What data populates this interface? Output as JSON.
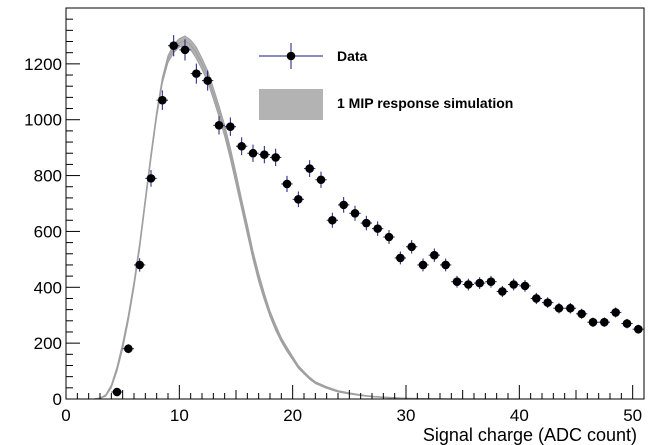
{
  "chart_data": {
    "type": "scatter",
    "xlabel": "Signal charge (ADC count)",
    "ylabel": "",
    "xlim": [
      0,
      51
    ],
    "ylim": [
      0,
      1400
    ],
    "x_ticks": [
      0,
      10,
      20,
      30,
      40,
      50
    ],
    "y_ticks": [
      0,
      200,
      400,
      600,
      800,
      1000,
      1200
    ],
    "x_tick_labels": [
      "0",
      "10",
      "20",
      "30",
      "40",
      "50"
    ],
    "y_tick_labels": [
      "0",
      "200",
      "400",
      "600",
      "800",
      "1000",
      "1200"
    ],
    "grid": false,
    "legend_position": "top-right",
    "legend": {
      "data_label": "Data",
      "sim_label": "1 MIP response simulation"
    },
    "colors": {
      "data_marker": "#000000",
      "data_errorbar": "#1a1a80",
      "sim_band": "#b3b3b3",
      "sim_line": "#a0a0a0"
    },
    "series": [
      {
        "kind": "points_with_errors",
        "x": [
          4.5,
          5.5,
          6.5,
          7.5,
          8.5,
          9.5,
          10.5,
          11.5,
          12.5,
          13.5,
          14.5,
          15.5,
          16.5,
          17.5,
          18.5,
          19.5,
          20.5,
          21.5,
          22.5,
          23.5,
          24.5,
          25.5,
          26.5,
          27.5,
          28.5,
          29.5,
          30.5,
          31.5,
          32.5,
          33.5,
          34.5,
          35.5,
          36.5,
          37.5,
          38.5,
          39.5,
          40.5,
          41.5,
          42.5,
          43.5,
          44.5,
          45.5,
          46.5,
          47.5,
          48.5,
          49.5,
          50.5
        ],
        "y": [
          25,
          180,
          480,
          790,
          1070,
          1265,
          1250,
          1165,
          1140,
          980,
          975,
          905,
          880,
          875,
          865,
          770,
          715,
          825,
          785,
          640,
          695,
          665,
          630,
          610,
          580,
          505,
          545,
          480,
          515,
          480,
          420,
          410,
          415,
          420,
          385,
          410,
          405,
          360,
          345,
          325,
          325,
          305,
          275,
          275,
          310,
          270,
          250
        ],
        "yerr": [
          6,
          16,
          24,
          30,
          35,
          38,
          38,
          36,
          36,
          33,
          33,
          32,
          31,
          31,
          31,
          29,
          28,
          30,
          29,
          27,
          28,
          27,
          26,
          26,
          25,
          23,
          24,
          23,
          24,
          23,
          21,
          21,
          21,
          21,
          20,
          21,
          21,
          20,
          19,
          19,
          19,
          18,
          17,
          17,
          18,
          17,
          16
        ]
      },
      {
        "kind": "band",
        "x": [
          2.5,
          3,
          3.5,
          4,
          4.5,
          5,
          5.5,
          6,
          6.5,
          7,
          7.5,
          8,
          8.5,
          9,
          9.5,
          10,
          10.5,
          11,
          11.5,
          12,
          12.5,
          13,
          13.5,
          14,
          14.5,
          15,
          15.5,
          16,
          16.5,
          17,
          17.5,
          18,
          18.5,
          19,
          19.5,
          20,
          20.5,
          21,
          21.5,
          22,
          23,
          24,
          25,
          26,
          27,
          28,
          29,
          30,
          31,
          32,
          33,
          34,
          35,
          36,
          37,
          38,
          39,
          40
        ],
        "lower": [
          0,
          2,
          10,
          40,
          100,
          180,
          280,
          400,
          540,
          700,
          860,
          1010,
          1130,
          1205,
          1240,
          1260,
          1265,
          1250,
          1220,
          1180,
          1135,
          1075,
          1010,
          940,
          860,
          770,
          680,
          590,
          500,
          420,
          355,
          295,
          245,
          205,
          170,
          140,
          110,
          90,
          70,
          55,
          38,
          25,
          18,
          12,
          8,
          5,
          3,
          2,
          1,
          0,
          0,
          0,
          0,
          0,
          0,
          0,
          0,
          0
        ],
        "upper": [
          0,
          4,
          15,
          50,
          115,
          200,
          300,
          420,
          560,
          720,
          880,
          1030,
          1150,
          1230,
          1270,
          1290,
          1300,
          1285,
          1260,
          1220,
          1175,
          1115,
          1050,
          980,
          900,
          810,
          715,
          625,
          530,
          450,
          380,
          315,
          265,
          220,
          185,
          152,
          120,
          98,
          78,
          62,
          44,
          30,
          22,
          15,
          10,
          7,
          5,
          3,
          2,
          1,
          1,
          0,
          0,
          0,
          0,
          0,
          0,
          0
        ]
      }
    ]
  }
}
